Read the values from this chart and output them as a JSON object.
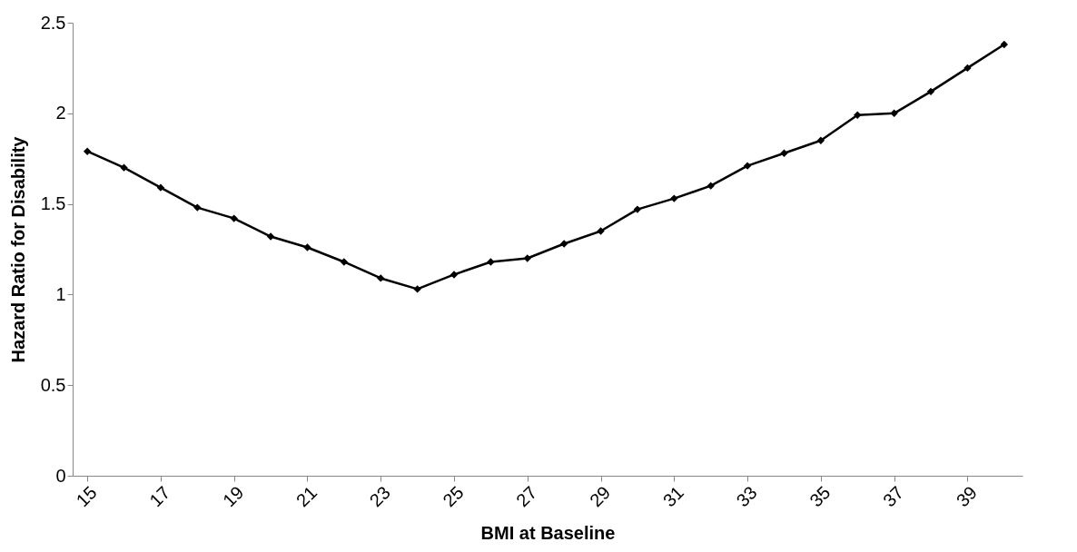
{
  "chart_data": {
    "type": "line",
    "xlabel": "BMI at Baseline",
    "ylabel": "Hazard Ratio for Disability",
    "x": [
      15,
      16,
      17,
      18,
      19,
      20,
      21,
      22,
      23,
      24,
      25,
      26,
      27,
      28,
      29,
      30,
      31,
      32,
      33,
      34,
      35,
      36,
      37,
      38,
      39,
      40
    ],
    "series": [
      {
        "color": "#000000",
        "values": [
          1.79,
          1.7,
          1.59,
          1.48,
          1.42,
          1.32,
          1.26,
          1.18,
          1.09,
          1.03,
          1.11,
          1.18,
          1.2,
          1.28,
          1.35,
          1.47,
          1.53,
          1.6,
          1.71,
          1.78,
          1.85,
          1.99,
          2.0,
          2.12,
          2.25,
          2.38
        ]
      }
    ],
    "xlim": [
      14.6,
      40.5
    ],
    "xticks": [
      15,
      17,
      19,
      21,
      23,
      25,
      27,
      29,
      31,
      33,
      35,
      37,
      39
    ],
    "ylim": [
      0,
      2.5
    ],
    "yticks": [
      0,
      0.5,
      1,
      1.5,
      2,
      2.5
    ],
    "marker": "diamond",
    "line_style": "solid",
    "grid": false,
    "legend": false
  }
}
